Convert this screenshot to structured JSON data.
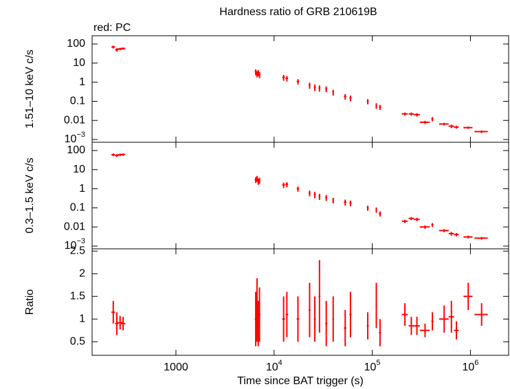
{
  "chart_data": [
    {
      "type": "errorbar",
      "title": "Hardness ratio of GRB 210619B",
      "annotation": "red: PC",
      "ylabel": "1.51–10 keV c/s",
      "xlog": true,
      "ylog": true,
      "xlim": [
        140,
        2450000
      ],
      "ylim": [
        0.00072,
        270
      ],
      "yticks": [
        100,
        10,
        1,
        0.1,
        0.01,
        {
          "value": 0.001,
          "label": "10",
          "exponent": "−3"
        }
      ],
      "x": [
        230,
        250,
        270,
        290,
        6500,
        6700,
        6900,
        7100,
        12500,
        13500,
        17500,
        23000,
        26000,
        29000,
        34000,
        40000,
        53000,
        60000,
        90000,
        110000,
        120000,
        215000,
        250000,
        285000,
        345000,
        410000,
        540000,
        640000,
        720000,
        950000,
        1300000
      ],
      "xerr": [
        10,
        10,
        15,
        15,
        150,
        150,
        150,
        150,
        400,
        400,
        500,
        500,
        600,
        600,
        800,
        800,
        1500,
        1500,
        2000,
        2000,
        3000,
        15000,
        15000,
        20000,
        40000,
        10000,
        60000,
        40000,
        40000,
        100000,
        200000
      ],
      "series": [
        {
          "color": "#ff0000",
          "values": [
            70,
            50,
            55,
            58,
            3.5,
            2.8,
            3.2,
            2.5,
            1.8,
            1.6,
            1.1,
            0.7,
            0.55,
            0.5,
            0.45,
            0.3,
            0.18,
            0.15,
            0.1,
            0.06,
            0.05,
            0.022,
            0.022,
            0.02,
            0.008,
            0.012,
            0.0065,
            0.005,
            0.0045,
            0.0042,
            0.0026
          ],
          "errors": [
            12,
            10,
            8,
            8,
            1.2,
            1,
            1.1,
            0.9,
            0.6,
            0.5,
            0.35,
            0.25,
            0.2,
            0.18,
            0.15,
            0.1,
            0.06,
            0.05,
            0.03,
            0.02,
            0.015,
            0.004,
            0.004,
            0.004,
            0.0015,
            0.003,
            0.001,
            0.001,
            0.0008,
            0.0006,
            0.0004
          ]
        }
      ]
    },
    {
      "type": "errorbar",
      "ylabel": "0.3–1.5 keV c/s",
      "xlog": true,
      "ylog": true,
      "xlim": [
        140,
        2450000
      ],
      "ylim": [
        0.00072,
        270
      ],
      "yticks": [
        100,
        10,
        1,
        0.1,
        0.01,
        {
          "value": 0.001,
          "label": "10",
          "exponent": "−3"
        }
      ],
      "x": [
        230,
        250,
        270,
        290,
        6500,
        6700,
        6900,
        7100,
        12500,
        13500,
        17500,
        23000,
        26000,
        29000,
        34000,
        40000,
        53000,
        60000,
        90000,
        110000,
        120000,
        215000,
        250000,
        285000,
        345000,
        410000,
        540000,
        640000,
        720000,
        950000,
        1300000
      ],
      "xerr": [
        10,
        10,
        15,
        15,
        150,
        150,
        150,
        150,
        400,
        400,
        500,
        500,
        600,
        600,
        800,
        800,
        1500,
        1500,
        2000,
        2000,
        3000,
        15000,
        15000,
        20000,
        40000,
        10000,
        60000,
        40000,
        40000,
        100000,
        200000
      ],
      "series": [
        {
          "color": "#ff0000",
          "values": [
            60,
            55,
            60,
            62,
            3,
            3.5,
            2.5,
            2.8,
            1.6,
            1.7,
            1,
            0.6,
            0.5,
            0.4,
            0.35,
            0.25,
            0.2,
            0.18,
            0.1,
            0.08,
            0.05,
            0.02,
            0.028,
            0.025,
            0.01,
            0.013,
            0.0065,
            0.0045,
            0.004,
            0.003,
            0.0026
          ],
          "errors": [
            10,
            9,
            9,
            9,
            1,
            1.2,
            0.9,
            1,
            0.5,
            0.5,
            0.3,
            0.2,
            0.18,
            0.14,
            0.12,
            0.08,
            0.07,
            0.06,
            0.03,
            0.025,
            0.015,
            0.004,
            0.005,
            0.005,
            0.002,
            0.003,
            0.0012,
            0.001,
            0.0008,
            0.0005,
            0.0004
          ]
        }
      ]
    },
    {
      "type": "errorbar",
      "ylabel": "Ratio",
      "xlabel": "Time since BAT trigger (s)",
      "xlog": true,
      "ylog": false,
      "xlim": [
        140,
        2450000
      ],
      "ylim": [
        0.2,
        2.55
      ],
      "xticks": [
        1000,
        {
          "value": 10000,
          "label": "10",
          "exponent": "4"
        },
        {
          "value": 100000,
          "label": "10",
          "exponent": "5"
        },
        {
          "value": 1000000,
          "label": "10",
          "exponent": "6"
        }
      ],
      "yticks": [
        0.5,
        1,
        1.5,
        2,
        2.5
      ],
      "x": [
        230,
        250,
        270,
        290,
        6500,
        6700,
        6900,
        7100,
        12500,
        13500,
        17500,
        23000,
        26000,
        29000,
        34000,
        40000,
        53000,
        60000,
        90000,
        110000,
        120000,
        215000,
        250000,
        285000,
        345000,
        410000,
        540000,
        640000,
        720000,
        950000,
        1300000
      ],
      "xerr": [
        10,
        10,
        15,
        15,
        150,
        150,
        150,
        150,
        400,
        400,
        500,
        500,
        600,
        600,
        800,
        800,
        1500,
        1500,
        2000,
        2000,
        3000,
        15000,
        15000,
        20000,
        40000,
        10000,
        60000,
        40000,
        40000,
        100000,
        200000
      ],
      "series": [
        {
          "color": "#ff0000",
          "values": [
            1.15,
            0.9,
            0.92,
            0.9,
            1.0,
            1.2,
            0.9,
            1.1,
            1.0,
            1.1,
            1.0,
            1.2,
            1.0,
            1.5,
            0.9,
            1.0,
            0.8,
            1.1,
            0.85,
            1.3,
            0.7,
            1.1,
            0.85,
            0.85,
            0.75,
            0.95,
            1.0,
            1.05,
            0.75,
            1.5,
            1.1
          ],
          "errors": [
            0.25,
            0.25,
            0.15,
            0.15,
            0.6,
            0.7,
            0.5,
            0.6,
            0.5,
            0.5,
            0.5,
            0.6,
            0.5,
            0.8,
            0.5,
            0.5,
            0.4,
            0.5,
            0.3,
            0.5,
            0.3,
            0.25,
            0.2,
            0.2,
            0.15,
            0.2,
            0.3,
            0.35,
            0.2,
            0.3,
            0.25
          ]
        }
      ]
    }
  ]
}
